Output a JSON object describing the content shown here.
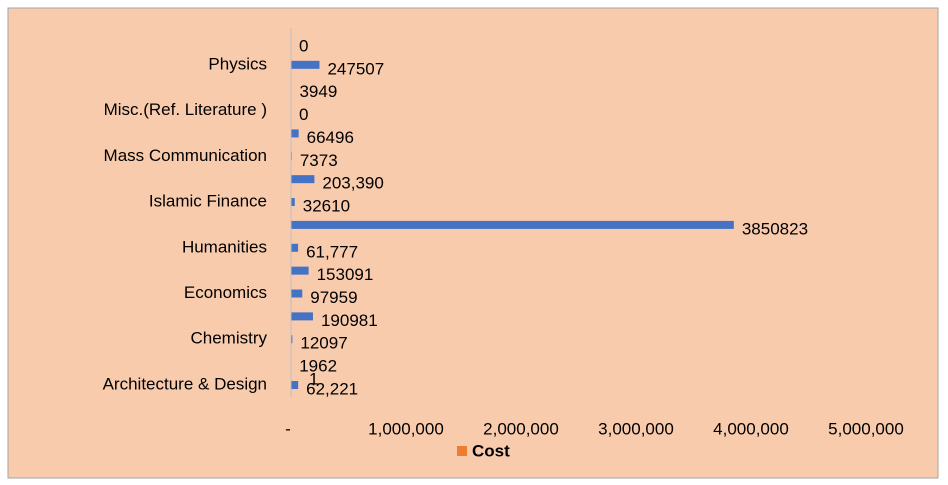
{
  "chart_data": {
    "type": "bar",
    "orientation": "horizontal",
    "categories": [
      "Architecture & Design",
      null,
      "Chemistry",
      null,
      "Economics",
      null,
      "Humanities",
      null,
      "Islamic Finance",
      null,
      "Mass Communication",
      null,
      "Misc.(Ref. Literature )",
      null,
      "Physics",
      null
    ],
    "series": [
      {
        "name": "Cost",
        "color": "#4472c4",
        "values": [
          62221,
          1962,
          12097,
          190981,
          97959,
          153091,
          61777,
          3850823,
          32610,
          203390,
          7373,
          66496,
          0,
          3949,
          247507,
          0
        ],
        "value_labels": [
          "62,221",
          "1962",
          "12097",
          "190981",
          "97959",
          "153091",
          "61,777",
          "3850823",
          "32610",
          "203,390",
          "7373",
          "66496",
          "0",
          "3949",
          "247507",
          "0"
        ]
      }
    ],
    "annotations": [
      {
        "text": "1"
      }
    ],
    "xlim": [
      0,
      5000000
    ],
    "xticks": [
      {
        "value": 0,
        "label": "-"
      },
      {
        "value": 1000000,
        "label": "1,000,000"
      },
      {
        "value": 2000000,
        "label": "2,000,000"
      },
      {
        "value": 3000000,
        "label": "3,000,000"
      },
      {
        "value": 4000000,
        "label": "4,000,000"
      },
      {
        "value": 5000000,
        "label": "5,000,000"
      }
    ],
    "legend_color": "#ed7d31",
    "background": "#f8cbad"
  }
}
